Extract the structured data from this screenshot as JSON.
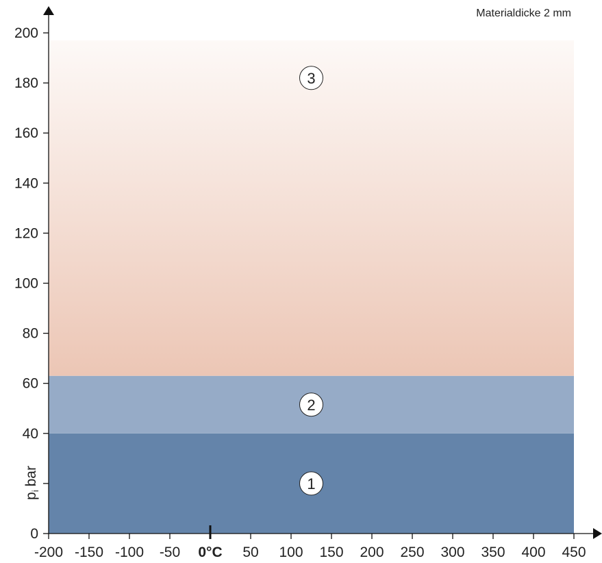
{
  "note": "Materialdicke 2 mm",
  "chart_data": {
    "type": "area",
    "xlim": [
      -200,
      450
    ],
    "ylim": [
      0,
      200
    ],
    "x_ticks": [
      -200,
      -150,
      -100,
      -50,
      0,
      50,
      100,
      150,
      200,
      250,
      300,
      350,
      400,
      450
    ],
    "x_tick_labels": [
      "-200",
      "-150",
      "-100",
      "-50",
      "0°C",
      "50",
      "100",
      "150",
      "200",
      "250",
      "300",
      "350",
      "400",
      "450"
    ],
    "y_ticks": [
      0,
      20,
      40,
      60,
      80,
      100,
      120,
      140,
      160,
      180,
      200
    ],
    "y_tick_labels": [
      "0",
      "",
      "40",
      "60",
      "80",
      "100",
      "120",
      "140",
      "160",
      "180",
      "200"
    ],
    "ylabel_main": "p",
    "ylabel_sub": "i",
    "ylabel_unit": "bar",
    "zones": [
      {
        "label": "1",
        "y_from": 0,
        "y_to": 40,
        "label_y": 20,
        "label_x": 125,
        "color": "#6484aa"
      },
      {
        "label": "2",
        "y_from": 40,
        "y_to": 63,
        "label_y": 51.5,
        "label_x": 125,
        "color": "#96abc7"
      },
      {
        "label": "3",
        "y_from": 63,
        "y_to": 197,
        "label_y": 182,
        "label_x": 125,
        "color_bottom": "#ecc6b5",
        "color_top": "#fdf9f7"
      }
    ],
    "grid": false,
    "legend": "none"
  },
  "colors": {
    "axis": "#111111",
    "zone1": "#6484aa",
    "zone2": "#96abc7",
    "zone3_bottom": "#ecc6b5",
    "zone3_top": "#fdf9f7"
  }
}
